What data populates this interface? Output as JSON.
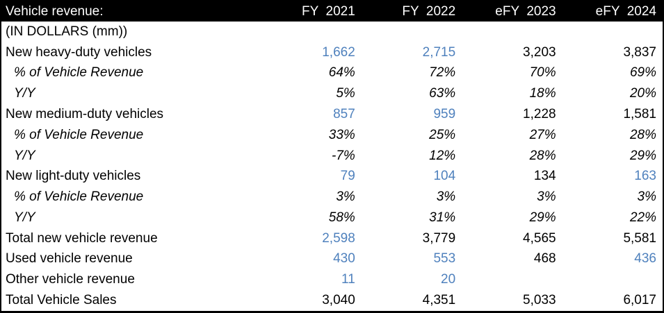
{
  "colors": {
    "accent_blue": "#4f81bd",
    "header_bg": "#000000",
    "header_text": "#ffffff",
    "body_text": "#000000"
  },
  "chart_data": {
    "type": "table",
    "title": "Vehicle revenue:",
    "units_note": "(IN DOLLARS (mm))",
    "columns": [
      "FY  2021",
      "FY  2022",
      "eFY  2023",
      "eFY  2024"
    ],
    "rows": [
      {
        "label": "(IN DOLLARS (mm))",
        "italic": false,
        "indent": false,
        "values": [
          "",
          "",
          "",
          ""
        ],
        "blue": [
          false,
          false,
          false,
          false
        ]
      },
      {
        "label": "New heavy-duty vehicles",
        "italic": false,
        "indent": false,
        "values": [
          "1,662",
          "2,715",
          "3,203",
          "3,837"
        ],
        "blue": [
          true,
          true,
          false,
          false
        ]
      },
      {
        "label": "% of Vehicle Revenue",
        "italic": true,
        "indent": true,
        "values": [
          "64%",
          "72%",
          "70%",
          "69%"
        ],
        "blue": [
          false,
          false,
          false,
          false
        ]
      },
      {
        "label": "Y/Y",
        "italic": true,
        "indent": true,
        "values": [
          "5%",
          "63%",
          "18%",
          "20%"
        ],
        "blue": [
          false,
          false,
          false,
          false
        ]
      },
      {
        "label": "New medium-duty vehicles",
        "italic": false,
        "indent": false,
        "values": [
          "857",
          "959",
          "1,228",
          "1,581"
        ],
        "blue": [
          true,
          true,
          false,
          false
        ]
      },
      {
        "label": "% of Vehicle Revenue",
        "italic": true,
        "indent": true,
        "values": [
          "33%",
          "25%",
          "27%",
          "28%"
        ],
        "blue": [
          false,
          false,
          false,
          false
        ]
      },
      {
        "label": "Y/Y",
        "italic": true,
        "indent": true,
        "values": [
          "-7%",
          "12%",
          "28%",
          "29%"
        ],
        "blue": [
          false,
          false,
          false,
          false
        ]
      },
      {
        "label": "New light-duty vehicles",
        "italic": false,
        "indent": false,
        "values": [
          "79",
          "104",
          "134",
          "163"
        ],
        "blue": [
          true,
          true,
          false,
          true
        ]
      },
      {
        "label": "% of Vehicle Revenue",
        "italic": true,
        "indent": true,
        "values": [
          "3%",
          "3%",
          "3%",
          "3%"
        ],
        "blue": [
          false,
          false,
          false,
          false
        ]
      },
      {
        "label": "Y/Y",
        "italic": true,
        "indent": true,
        "values": [
          "58%",
          "31%",
          "29%",
          "22%"
        ],
        "blue": [
          false,
          false,
          false,
          false
        ]
      },
      {
        "label": "Total new vehicle revenue",
        "italic": false,
        "indent": false,
        "values": [
          "2,598",
          "3,779",
          "4,565",
          "5,581"
        ],
        "blue": [
          true,
          false,
          false,
          false
        ]
      },
      {
        "label": "Used vehicle revenue",
        "italic": false,
        "indent": false,
        "values": [
          "430",
          "553",
          "468",
          "436"
        ],
        "blue": [
          true,
          true,
          false,
          true
        ]
      },
      {
        "label": "Other vehicle revenue",
        "italic": false,
        "indent": false,
        "values": [
          "11",
          "20",
          "",
          ""
        ],
        "blue": [
          true,
          true,
          false,
          false
        ]
      },
      {
        "label": "Total Vehicle Sales",
        "italic": false,
        "indent": false,
        "values": [
          "3,040",
          "4,351",
          "5,033",
          "6,017"
        ],
        "blue": [
          false,
          false,
          false,
          false
        ]
      }
    ]
  }
}
